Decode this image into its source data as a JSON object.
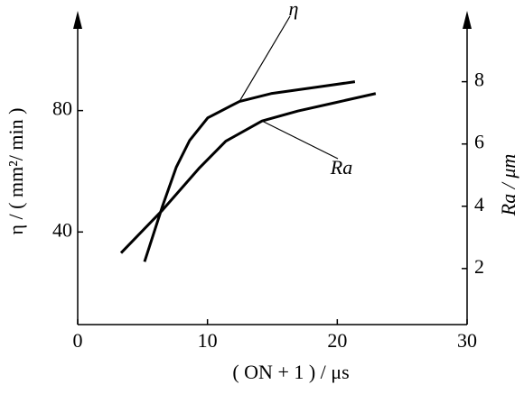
{
  "chart_data": {
    "type": "line",
    "xlabel": "( ON + 1 ) / μs",
    "ylabel": "η / ( mm²/ min )",
    "y2label": "Ra / μm",
    "xlim": [
      0,
      30
    ],
    "xticks": [
      0,
      10,
      20,
      30
    ],
    "ylim": [
      9.5,
      109
    ],
    "yticks": [
      40,
      80
    ],
    "y2lim": [
      0.2,
      9.9
    ],
    "y2ticks": [
      2,
      4,
      6,
      8
    ],
    "series": [
      {
        "name": "η",
        "color": "#000000",
        "x": [
          5.15,
          6.54,
          7.59,
          8.63,
          10.02,
          12.46,
          14.9,
          18.37,
          21.36
        ],
        "values": [
          30.2,
          48.6,
          61.3,
          70.2,
          77.6,
          83.0,
          85.6,
          87.7,
          89.5
        ]
      },
      {
        "name": "Ra",
        "color": "#000000",
        "axis": "y2",
        "x": [
          3.34,
          6.54,
          9.33,
          11.41,
          14.2,
          16.98,
          19.76,
          22.96
        ],
        "values": [
          2.5,
          3.88,
          5.21,
          6.09,
          6.74,
          7.06,
          7.32,
          7.62
        ]
      }
    ]
  }
}
